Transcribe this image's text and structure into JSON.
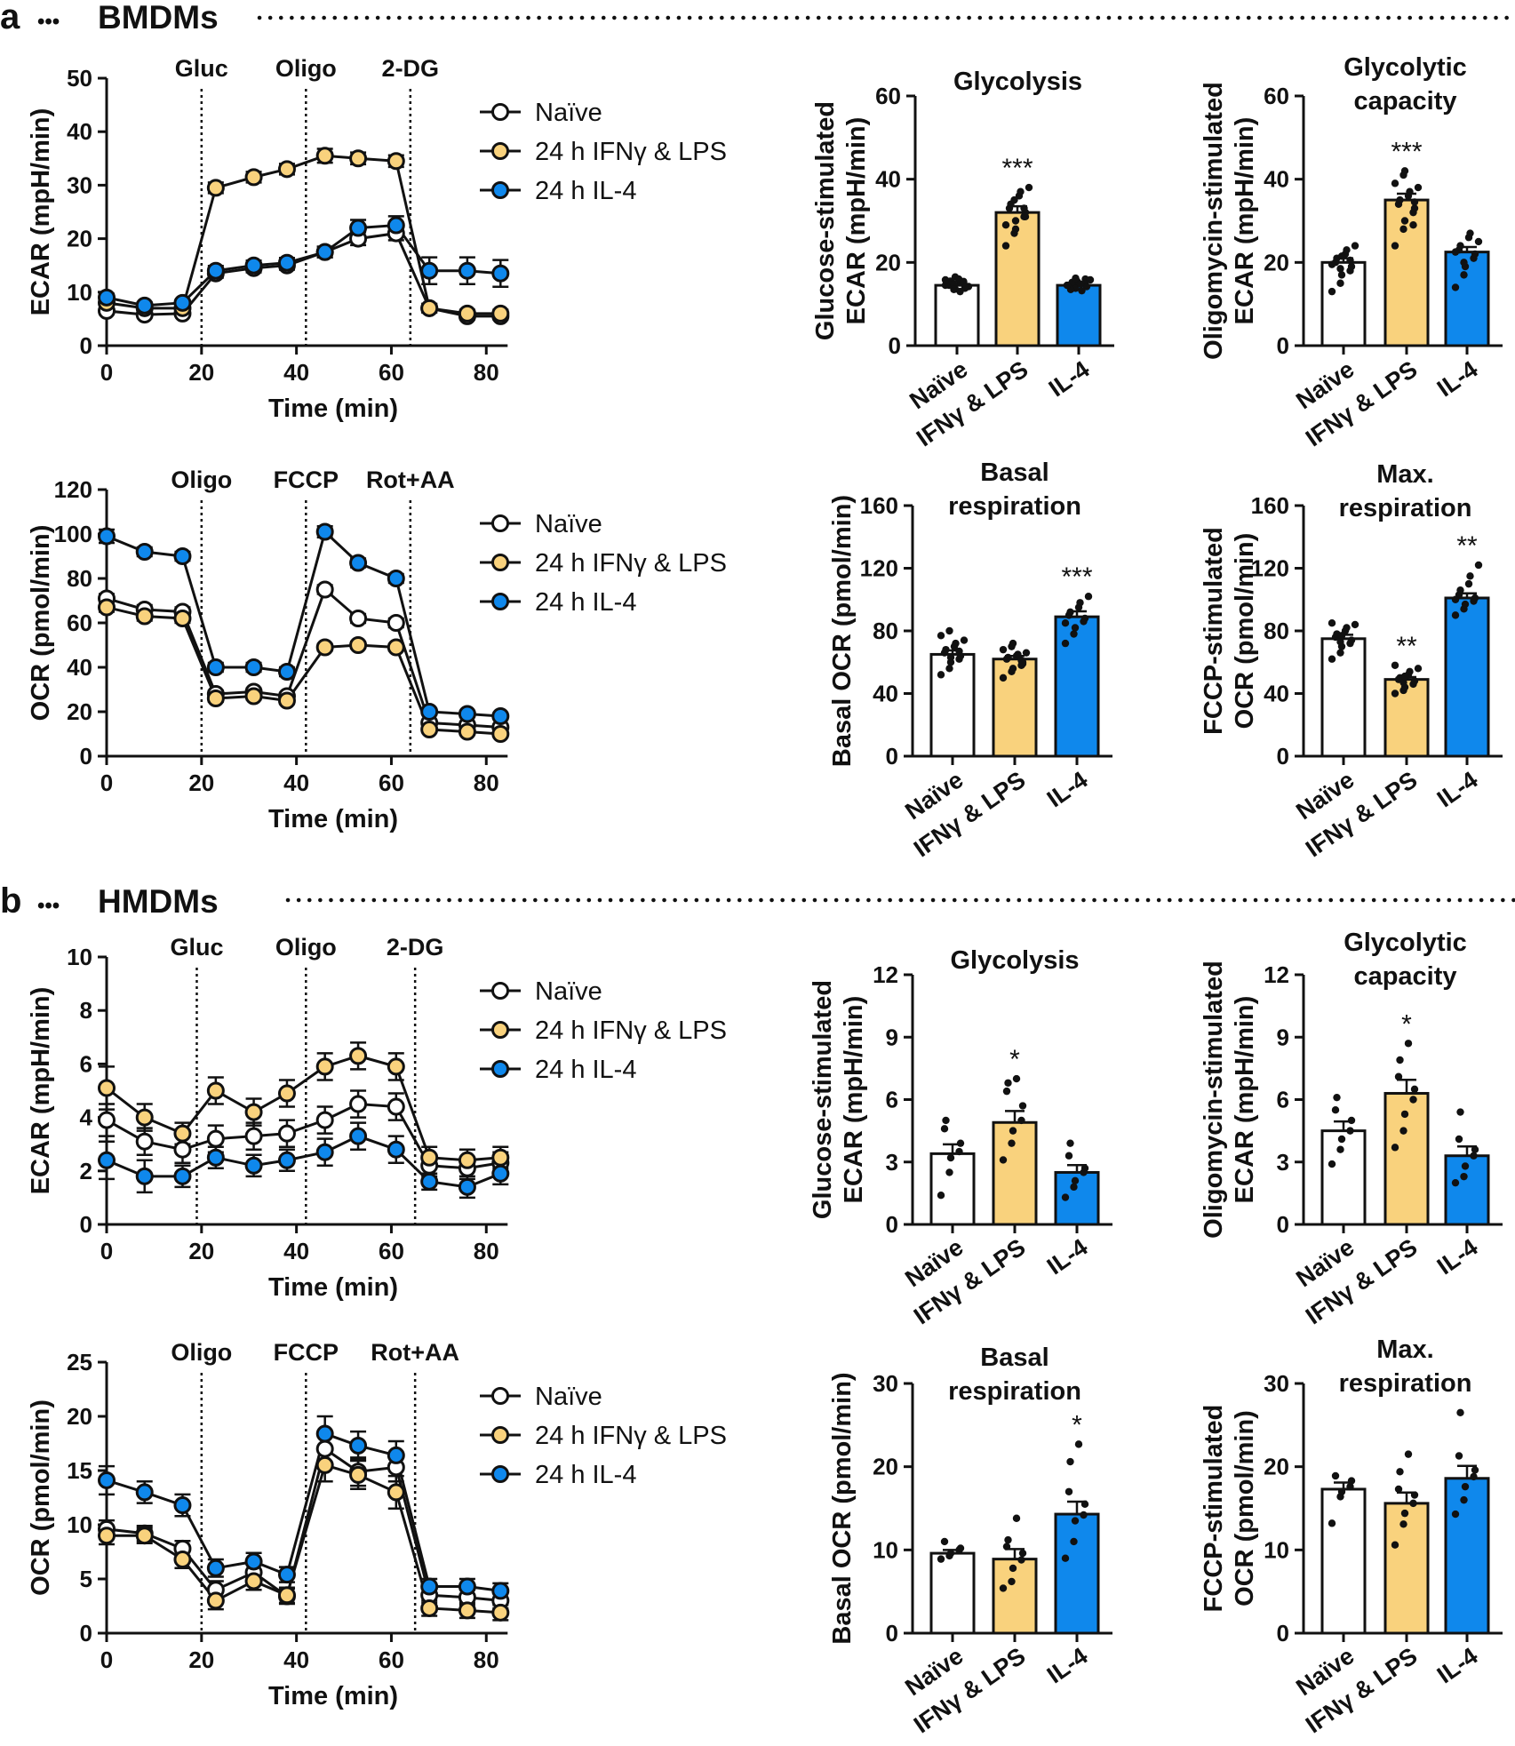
{
  "colors": {
    "naive": "#ffffff",
    "ifn": "#f9d27d",
    "il4": "#0f88ec",
    "stroke": "#111111"
  },
  "panels": [
    {
      "letter": "a",
      "title": "BMDMs"
    },
    {
      "letter": "b",
      "title": "HMDMs"
    }
  ],
  "legend_labels": [
    "Naïve",
    "24 h IFNγ & LPS",
    "24 h IL-4"
  ],
  "category_labels": [
    "Naïve",
    "IFNγ & LPS",
    "IL-4"
  ],
  "chart_data": [
    {
      "type": "line",
      "panel": "a",
      "title": "",
      "xlabel": "Time (min)",
      "ylabel": "ECAR (mpH/min)",
      "xlim": [
        0,
        88
      ],
      "ylim": [
        0,
        50
      ],
      "xticks": [
        0,
        20,
        40,
        60,
        80
      ],
      "yticks": [
        0,
        10,
        20,
        30,
        40,
        50
      ],
      "injections": [
        {
          "x": 20,
          "label": "Gluc"
        },
        {
          "x": 42,
          "label": "Oligo"
        },
        {
          "x": 64,
          "label": "2-DG"
        }
      ],
      "x": [
        0,
        8,
        16,
        23,
        31,
        38,
        46,
        53,
        61,
        68,
        76,
        83
      ],
      "series": [
        {
          "name": "Naïve",
          "values": [
            6.5,
            5.8,
            6,
            13.5,
            14.5,
            15,
            17.5,
            20,
            21,
            7,
            5.5,
            5.5
          ],
          "err": [
            0.6,
            0.5,
            0.5,
            0.8,
            0.8,
            0.8,
            1,
            1.2,
            1.3,
            0.8,
            0.6,
            0.6
          ]
        },
        {
          "name": "24 h IFNγ & LPS",
          "values": [
            8,
            7,
            7,
            29.5,
            31.5,
            33,
            35.5,
            35,
            34.5,
            7,
            6,
            6
          ],
          "err": [
            0.7,
            0.6,
            0.6,
            1,
            1,
            1,
            1.3,
            1.1,
            1.1,
            0.8,
            0.7,
            0.7
          ]
        },
        {
          "name": "24 h IL-4",
          "values": [
            9,
            7.5,
            8,
            14,
            15,
            15.5,
            17.5,
            22,
            22.5,
            14,
            14,
            13.5
          ],
          "err": [
            0.7,
            0.6,
            0.6,
            0.9,
            0.9,
            0.9,
            1,
            1.5,
            1.7,
            2.5,
            2.5,
            2.5
          ]
        }
      ]
    },
    {
      "type": "bar",
      "panel": "a",
      "title": "Glycolysis",
      "xlabel": "",
      "ylabel": "Glucose-stimulated\nECAR (mpH/min)",
      "ylim": [
        0,
        60
      ],
      "yticks": [
        0,
        20,
        40,
        60
      ],
      "categories": [
        "Naïve",
        "IFNγ & LPS",
        "IL-4"
      ],
      "values": [
        14.5,
        32,
        14.5
      ],
      "err": [
        0.5,
        1.5,
        0.5
      ],
      "significance": [
        "",
        "***",
        ""
      ],
      "points": [
        [
          14.5,
          13.5,
          16.5,
          15.2,
          13.8,
          14.5,
          15.5,
          16,
          13,
          14.2,
          15.8,
          14.8,
          13.6,
          15.4,
          14
        ],
        [
          24,
          27,
          30,
          31,
          32,
          33,
          34,
          36,
          37,
          38,
          29,
          35,
          28,
          33,
          31
        ],
        [
          14.5,
          13.8,
          15.5,
          16,
          14.2,
          13.5,
          15.2,
          14.8,
          13.2,
          15.8,
          14.5,
          16.2
        ]
      ]
    },
    {
      "type": "bar",
      "panel": "a",
      "title": "Glycolytic\ncapacity",
      "xlabel": "",
      "ylabel": "Oligomycin-stimulated\nECAR (mpH/min)",
      "ylim": [
        0,
        60
      ],
      "yticks": [
        0,
        20,
        40,
        60
      ],
      "categories": [
        "Naïve",
        "IFNγ & LPS",
        "IL-4"
      ],
      "values": [
        20,
        35,
        22.5
      ],
      "err": [
        1,
        1.5,
        1.2
      ],
      "significance": [
        "",
        "***",
        ""
      ],
      "points": [
        [
          13,
          15,
          17,
          18,
          19,
          20,
          21,
          22,
          23,
          24,
          19.5,
          18.5,
          21.5,
          20.5
        ],
        [
          24,
          28,
          30,
          32,
          33,
          34,
          35,
          36,
          37,
          38,
          39,
          41,
          42,
          29,
          34.5
        ],
        [
          14,
          17,
          19,
          21,
          22,
          23,
          24,
          26,
          27,
          25,
          22.5,
          20
        ]
      ]
    },
    {
      "type": "line",
      "panel": "a",
      "title": "",
      "xlabel": "Time (min)",
      "ylabel": "OCR (pmol/min)",
      "xlim": [
        0,
        88
      ],
      "ylim": [
        0,
        120
      ],
      "xticks": [
        0,
        20,
        40,
        60,
        80
      ],
      "yticks": [
        0,
        20,
        40,
        60,
        80,
        100,
        120
      ],
      "injections": [
        {
          "x": 20,
          "label": "Oligo"
        },
        {
          "x": 42,
          "label": "FCCP"
        },
        {
          "x": 64,
          "label": "Rot+AA"
        }
      ],
      "x": [
        0,
        8,
        16,
        23,
        31,
        38,
        46,
        53,
        61,
        68,
        76,
        83
      ],
      "series": [
        {
          "name": "Naïve",
          "values": [
            71,
            66,
            65,
            28,
            29,
            27,
            75,
            62,
            60,
            15,
            14,
            13
          ],
          "err": [
            2,
            2,
            2,
            1.5,
            1.5,
            1.5,
            2,
            2,
            2,
            1,
            1,
            1
          ]
        },
        {
          "name": "24 h IFNγ & LPS",
          "values": [
            67,
            63,
            62,
            26,
            27,
            25,
            49,
            50,
            49,
            12,
            11,
            10
          ],
          "err": [
            2,
            2,
            2,
            1.5,
            1.5,
            1.5,
            1.5,
            1.5,
            1.5,
            1,
            1,
            1
          ]
        },
        {
          "name": "24 h IL-4",
          "values": [
            99,
            92,
            90,
            40,
            40,
            38,
            101,
            87,
            80,
            20,
            19,
            18
          ],
          "err": [
            3,
            2,
            2,
            2,
            2,
            2,
            2.5,
            2,
            2,
            1.2,
            1.2,
            1.2
          ]
        }
      ]
    },
    {
      "type": "bar",
      "panel": "a",
      "title": "Basal\nrespiration",
      "xlabel": "",
      "ylabel": "Basal OCR (pmol/min)",
      "ylim": [
        0,
        160
      ],
      "yticks": [
        0,
        40,
        80,
        120,
        160
      ],
      "categories": [
        "Naïve",
        "IFNγ & LPS",
        "IL-4"
      ],
      "values": [
        65,
        62,
        89
      ],
      "err": [
        2.5,
        2,
        3.5
      ],
      "significance": [
        "",
        "",
        "***"
      ],
      "points": [
        [
          52,
          56,
          60,
          62,
          64,
          66,
          68,
          70,
          72,
          74,
          77,
          80,
          63,
          67
        ],
        [
          50,
          54,
          56,
          58,
          60,
          62,
          63,
          64,
          65,
          66,
          68,
          70,
          72,
          61,
          59
        ],
        [
          72,
          78,
          82,
          86,
          88,
          90,
          92,
          95,
          98,
          102,
          85
        ]
      ]
    },
    {
      "type": "bar",
      "panel": "a",
      "title": "Max.\nrespiration",
      "xlabel": "",
      "ylabel": "FCCP-stimulated\nOCR (pmol/min)",
      "ylim": [
        0,
        160
      ],
      "yticks": [
        0,
        40,
        80,
        120,
        160
      ],
      "categories": [
        "Naïve",
        "IFNγ & LPS",
        "IL-4"
      ],
      "values": [
        75,
        49,
        101
      ],
      "err": [
        2.5,
        1.5,
        3
      ],
      "significance": [
        "",
        "**",
        "**"
      ],
      "points": [
        [
          62,
          66,
          70,
          72,
          74,
          76,
          78,
          80,
          82,
          84,
          85,
          73,
          77
        ],
        [
          40,
          42,
          44,
          46,
          48,
          49,
          50,
          52,
          54,
          56,
          58,
          47,
          51
        ],
        [
          90,
          94,
          97,
          99,
          101,
          103,
          106,
          110,
          115,
          122,
          100
        ]
      ]
    },
    {
      "type": "line",
      "panel": "b",
      "title": "",
      "xlabel": "Time (min)",
      "ylabel": "ECAR (mpH/min)",
      "xlim": [
        0,
        88
      ],
      "ylim": [
        0,
        10
      ],
      "xticks": [
        0,
        20,
        40,
        60,
        80
      ],
      "yticks": [
        0,
        2,
        4,
        6,
        8,
        10
      ],
      "injections": [
        {
          "x": 19,
          "label": "Gluc"
        },
        {
          "x": 42,
          "label": "Oligo"
        },
        {
          "x": 65,
          "label": "2-DG"
        }
      ],
      "x": [
        0,
        8,
        16,
        23,
        31,
        38,
        46,
        53,
        61,
        68,
        76,
        83
      ],
      "series": [
        {
          "name": "Naïve",
          "values": [
            3.9,
            3.1,
            2.8,
            3.2,
            3.3,
            3.4,
            3.9,
            4.5,
            4.4,
            2.2,
            2.1,
            2.3
          ],
          "err": [
            0.6,
            0.5,
            0.5,
            0.5,
            0.5,
            0.5,
            0.5,
            0.5,
            0.5,
            0.4,
            0.4,
            0.4
          ]
        },
        {
          "name": "24 h IFNγ & LPS",
          "values": [
            5.1,
            4.0,
            3.4,
            5.0,
            4.2,
            4.9,
            5.9,
            6.3,
            5.9,
            2.5,
            2.4,
            2.5
          ],
          "err": [
            0.8,
            0.5,
            0.4,
            0.5,
            0.5,
            0.5,
            0.5,
            0.5,
            0.5,
            0.4,
            0.4,
            0.4
          ]
        },
        {
          "name": "24 h IL-4",
          "values": [
            2.4,
            1.8,
            1.8,
            2.5,
            2.2,
            2.4,
            2.7,
            3.3,
            2.8,
            1.6,
            1.4,
            1.9
          ],
          "err": [
            0.7,
            0.6,
            0.4,
            0.4,
            0.4,
            0.4,
            0.5,
            0.5,
            0.5,
            0.3,
            0.4,
            0.4
          ]
        }
      ]
    },
    {
      "type": "bar",
      "panel": "b",
      "title": "Glycolysis",
      "xlabel": "",
      "ylabel": "Glucose-stimulated\nECAR (mpH/min)",
      "ylim": [
        0,
        12
      ],
      "yticks": [
        0,
        3,
        6,
        9,
        12
      ],
      "categories": [
        "Naïve",
        "IFNγ & LPS",
        "IL-4"
      ],
      "values": [
        3.4,
        4.9,
        2.5
      ],
      "err": [
        0.45,
        0.55,
        0.35
      ],
      "significance": [
        "",
        "*",
        ""
      ],
      "points": [
        [
          1.4,
          2.5,
          3.2,
          3.5,
          3.9,
          4.6,
          5.0
        ],
        [
          3.1,
          3.9,
          4.5,
          5.0,
          5.7,
          6.4,
          6.8,
          7.0
        ],
        [
          1.3,
          1.8,
          2.1,
          2.5,
          2.7,
          3.3,
          3.9
        ]
      ]
    },
    {
      "type": "bar",
      "panel": "b",
      "title": "Glycolytic\ncapacity",
      "xlabel": "",
      "ylabel": "Oligomycin-stimulated\nECAR (mpH/min)",
      "ylim": [
        0,
        12
      ],
      "yticks": [
        0,
        3,
        6,
        9,
        12
      ],
      "categories": [
        "Naïve",
        "IFNγ & LPS",
        "IL-4"
      ],
      "values": [
        4.5,
        6.3,
        3.3
      ],
      "err": [
        0.45,
        0.65,
        0.45
      ],
      "significance": [
        "",
        "*",
        ""
      ],
      "points": [
        [
          2.9,
          3.6,
          4.1,
          4.5,
          5.0,
          5.5,
          6.1
        ],
        [
          3.7,
          4.5,
          5.3,
          6.0,
          6.5,
          7.1,
          7.9,
          8.7
        ],
        [
          2.0,
          2.3,
          2.8,
          3.3,
          3.6,
          4.1,
          5.4
        ]
      ]
    },
    {
      "type": "line",
      "panel": "b",
      "title": "",
      "xlabel": "Time (min)",
      "ylabel": "OCR (pmol/min)",
      "xlim": [
        0,
        88
      ],
      "ylim": [
        0,
        25
      ],
      "xticks": [
        0,
        20,
        40,
        60,
        80
      ],
      "yticks": [
        0,
        5,
        10,
        15,
        20,
        25
      ],
      "injections": [
        {
          "x": 20,
          "label": "Oligo"
        },
        {
          "x": 42,
          "label": "FCCP"
        },
        {
          "x": 65,
          "label": "Rot+AA"
        }
      ],
      "x": [
        0,
        8,
        16,
        23,
        31,
        38,
        46,
        53,
        61,
        68,
        76,
        83
      ],
      "series": [
        {
          "name": "Naïve",
          "values": [
            9.6,
            9.2,
            7.8,
            4.0,
            5.6,
            3.4,
            17.0,
            14.9,
            15.3,
            3.5,
            3.3,
            3.0
          ],
          "err": [
            0.8,
            0.7,
            0.7,
            0.8,
            0.8,
            0.7,
            1.5,
            1.3,
            1.3,
            0.7,
            0.7,
            0.7
          ]
        },
        {
          "name": "24 h IFNγ & LPS",
          "values": [
            9.0,
            9.0,
            6.8,
            3.0,
            4.8,
            3.5,
            15.5,
            14.6,
            13.0,
            2.3,
            2.1,
            1.9
          ],
          "err": [
            0.8,
            0.7,
            0.8,
            0.8,
            0.8,
            0.7,
            1.5,
            1.3,
            1.5,
            0.7,
            0.7,
            0.7
          ]
        },
        {
          "name": "24 h IL-4",
          "values": [
            14.1,
            13.0,
            11.8,
            6.0,
            6.6,
            5.4,
            18.4,
            17.3,
            16.4,
            4.3,
            4.3,
            3.9
          ],
          "err": [
            1.3,
            1.0,
            1.0,
            0.8,
            0.8,
            0.7,
            1.6,
            1.3,
            1.3,
            0.7,
            0.7,
            0.7
          ]
        }
      ]
    },
    {
      "type": "bar",
      "panel": "b",
      "title": "Basal\nrespiration",
      "xlabel": "",
      "ylabel": "Basal OCR (pmol/min)",
      "ylim": [
        0,
        30
      ],
      "yticks": [
        0,
        10,
        20,
        30
      ],
      "categories": [
        "Naïve",
        "IFNγ & LPS",
        "IL-4"
      ],
      "values": [
        9.6,
        8.9,
        14.3
      ],
      "err": [
        0.4,
        1.2,
        1.5
      ],
      "significance": [
        "",
        "",
        "*"
      ],
      "points": [
        [
          8.9,
          9.3,
          9.6,
          10.0,
          10.2,
          11.0
        ],
        [
          5.4,
          6.2,
          7.8,
          8.8,
          9.6,
          10.4,
          11.2,
          13.8
        ],
        [
          9.0,
          11.0,
          13.5,
          14.2,
          15.5,
          17.0,
          20.6,
          22.7
        ]
      ]
    },
    {
      "type": "bar",
      "panel": "b",
      "title": "Max.\nrespiration",
      "xlabel": "",
      "ylabel": "FCCP-stimulated\nOCR (pmol/min)",
      "ylim": [
        0,
        30
      ],
      "yticks": [
        0,
        10,
        20,
        30
      ],
      "categories": [
        "Naïve",
        "IFNγ & LPS",
        "IL-4"
      ],
      "values": [
        17.3,
        15.6,
        18.6
      ],
      "err": [
        0.8,
        1.3,
        1.5
      ],
      "significance": [
        "",
        "",
        ""
      ],
      "points": [
        [
          13.2,
          16.4,
          17.0,
          17.6,
          18.3,
          18.9
        ],
        [
          10.6,
          13.1,
          14.4,
          15.6,
          16.6,
          17.3,
          19.4,
          21.5
        ],
        [
          14.3,
          16.0,
          17.6,
          18.8,
          19.6,
          21.3,
          26.5
        ]
      ]
    }
  ]
}
